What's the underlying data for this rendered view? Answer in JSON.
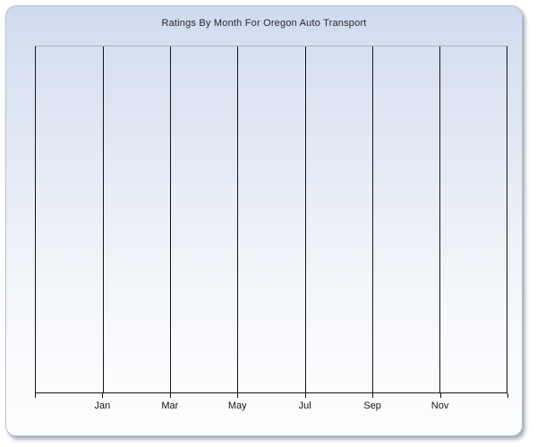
{
  "chart_data": {
    "type": "line",
    "title": "Ratings By Month For Oregon Auto Transport",
    "xlabel": "",
    "ylabel": "",
    "x_tick_labels": [
      "Jan",
      "Mar",
      "May",
      "Jul",
      "Sep",
      "Nov"
    ],
    "x_intervals": 7,
    "series": [],
    "note": "empty plot area - no data points rendered",
    "grid": "vertical-only",
    "legend": "none",
    "y_axis_labels": "none"
  },
  "colors": {
    "panel_background_top": "#cedaee",
    "panel_background_bottom": "#fcfdfe",
    "panel_border": "#bcc2cd",
    "plot_top_border": "#a9b3c6",
    "axis_and_gridline": "#141414",
    "title_text": "#26272d",
    "label_text": "#121212",
    "page_background": "#ffffff"
  }
}
